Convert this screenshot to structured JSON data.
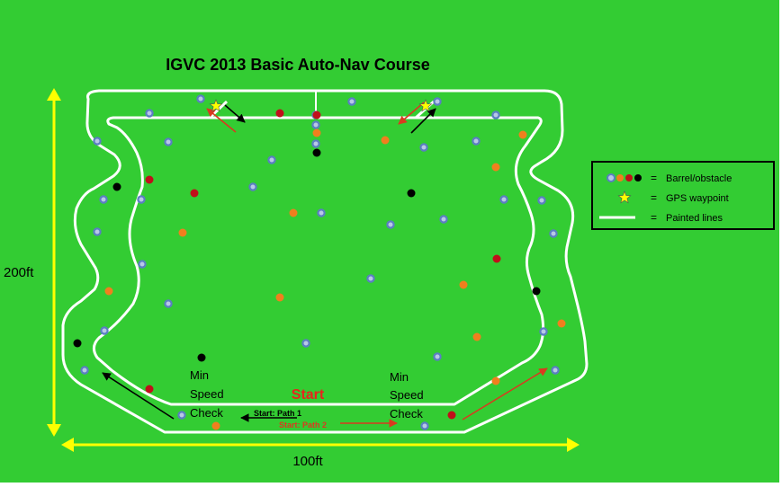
{
  "title": "IGVC 2013 Basic Auto-Nav Course",
  "dimensions": {
    "height_label": "200ft",
    "width_label": "100ft"
  },
  "labels": {
    "start": "Start",
    "min_speed_left": [
      "Min",
      "Speed",
      "Check"
    ],
    "min_speed_right": [
      "Min",
      "Speed",
      "Check"
    ],
    "path1": "Start: Path 1",
    "path2": "Start: Path 2"
  },
  "legend": {
    "barrel": "Barrel/obstacle",
    "gps": "GPS waypoint",
    "lines": "Painted lines",
    "equals": "="
  },
  "colors": {
    "field": "#33cc33",
    "line": "#ffffff",
    "dimension": "#ffff00",
    "title": "#000000",
    "start_label": "#e8251c",
    "barrel_blue": "#5b7ec2",
    "barrel_orange": "#f07f1e",
    "barrel_red": "#c0101a",
    "barrel_black": "#000000",
    "arrow_red": "#d93a1f",
    "arrow_black": "#000000",
    "waypoint": "#ffff00"
  },
  "obstacles": {
    "blue": [
      [
        223,
        110
      ],
      [
        166,
        126
      ],
      [
        108,
        157
      ],
      [
        351,
        128
      ],
      [
        351,
        139
      ],
      [
        351,
        160
      ],
      [
        391,
        113
      ],
      [
        486,
        113
      ],
      [
        551,
        128
      ],
      [
        529,
        157
      ],
      [
        471,
        164
      ],
      [
        302,
        178
      ],
      [
        187,
        158
      ],
      [
        281,
        208
      ],
      [
        115,
        222
      ],
      [
        157,
        222
      ],
      [
        357,
        237
      ],
      [
        434,
        250
      ],
      [
        493,
        244
      ],
      [
        560,
        222
      ],
      [
        602,
        223
      ],
      [
        108,
        258
      ],
      [
        615,
        260
      ],
      [
        158,
        294
      ],
      [
        412,
        310
      ],
      [
        187,
        338
      ],
      [
        116,
        368
      ],
      [
        340,
        382
      ],
      [
        604,
        369
      ],
      [
        94,
        412
      ],
      [
        486,
        397
      ],
      [
        617,
        412
      ],
      [
        202,
        462
      ],
      [
        472,
        474
      ]
    ],
    "orange": [
      [
        428,
        156
      ],
      [
        581,
        150
      ],
      [
        551,
        186
      ],
      [
        326,
        237
      ],
      [
        203,
        259
      ],
      [
        121,
        324
      ],
      [
        311,
        331
      ],
      [
        515,
        317
      ],
      [
        530,
        375
      ],
      [
        624,
        360
      ],
      [
        551,
        424
      ],
      [
        240,
        474
      ],
      [
        352,
        148
      ]
    ],
    "red": [
      [
        311,
        126
      ],
      [
        352,
        128
      ],
      [
        166,
        200
      ],
      [
        216,
        215
      ],
      [
        552,
        288
      ],
      [
        166,
        433
      ],
      [
        502,
        462
      ]
    ],
    "black": [
      [
        130,
        208
      ],
      [
        457,
        215
      ],
      [
        352,
        170
      ],
      [
        596,
        324
      ],
      [
        86,
        382
      ],
      [
        224,
        398
      ]
    ]
  },
  "waypoints": [
    [
      240,
      118
    ],
    [
      473,
      118
    ]
  ]
}
